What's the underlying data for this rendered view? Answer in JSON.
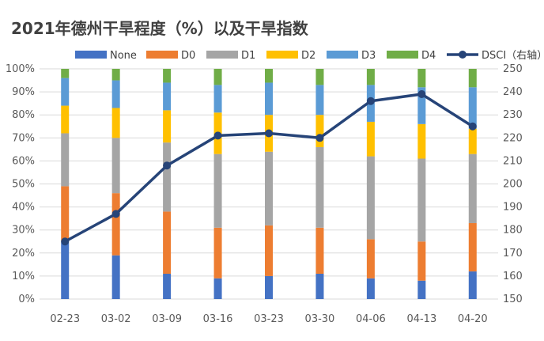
{
  "chart_data": {
    "type": "bar",
    "subtype": "stacked-percent-bar-with-line",
    "title": "2021年德州干旱程度（%）以及干旱指数",
    "categories": [
      "02-23",
      "03-02",
      "03-09",
      "03-16",
      "03-23",
      "03-30",
      "04-06",
      "04-13",
      "04-20"
    ],
    "y_left": {
      "ticks": [
        "0%",
        "10%",
        "20%",
        "30%",
        "40%",
        "50%",
        "60%",
        "70%",
        "80%",
        "90%",
        "100%"
      ],
      "ylim": [
        0,
        100
      ]
    },
    "y_right": {
      "ticks": [
        "150",
        "160",
        "170",
        "180",
        "190",
        "200",
        "210",
        "220",
        "230",
        "240",
        "250"
      ],
      "ylim": [
        150,
        250
      ]
    },
    "grid": true,
    "legend_position": "top",
    "series": [
      {
        "name": "None",
        "color": "#4472c4",
        "values": [
          25,
          19,
          11,
          9,
          10,
          11,
          9,
          8,
          12
        ]
      },
      {
        "name": "D0",
        "color": "#ed7d31",
        "values": [
          24,
          27,
          27,
          22,
          22,
          20,
          17,
          17,
          21
        ]
      },
      {
        "name": "D1",
        "color": "#a5a5a5",
        "values": [
          23,
          24,
          30,
          32,
          32,
          35,
          36,
          36,
          30
        ]
      },
      {
        "name": "D2",
        "color": "#ffc000",
        "values": [
          12,
          13,
          14,
          18,
          16,
          14,
          15,
          15,
          11
        ]
      },
      {
        "name": "D3",
        "color": "#5b9bd5",
        "values": [
          12,
          12,
          12,
          12,
          14,
          13,
          16,
          16,
          18
        ]
      },
      {
        "name": "D4",
        "color": "#70ad47",
        "values": [
          4,
          5,
          6,
          7,
          6,
          7,
          7,
          8,
          8
        ]
      }
    ],
    "line_series": {
      "name": "DSCI（右轴）",
      "color": "#264478",
      "axis": "right",
      "values": [
        175,
        187,
        208,
        221,
        222,
        220,
        236,
        239,
        225
      ]
    }
  }
}
